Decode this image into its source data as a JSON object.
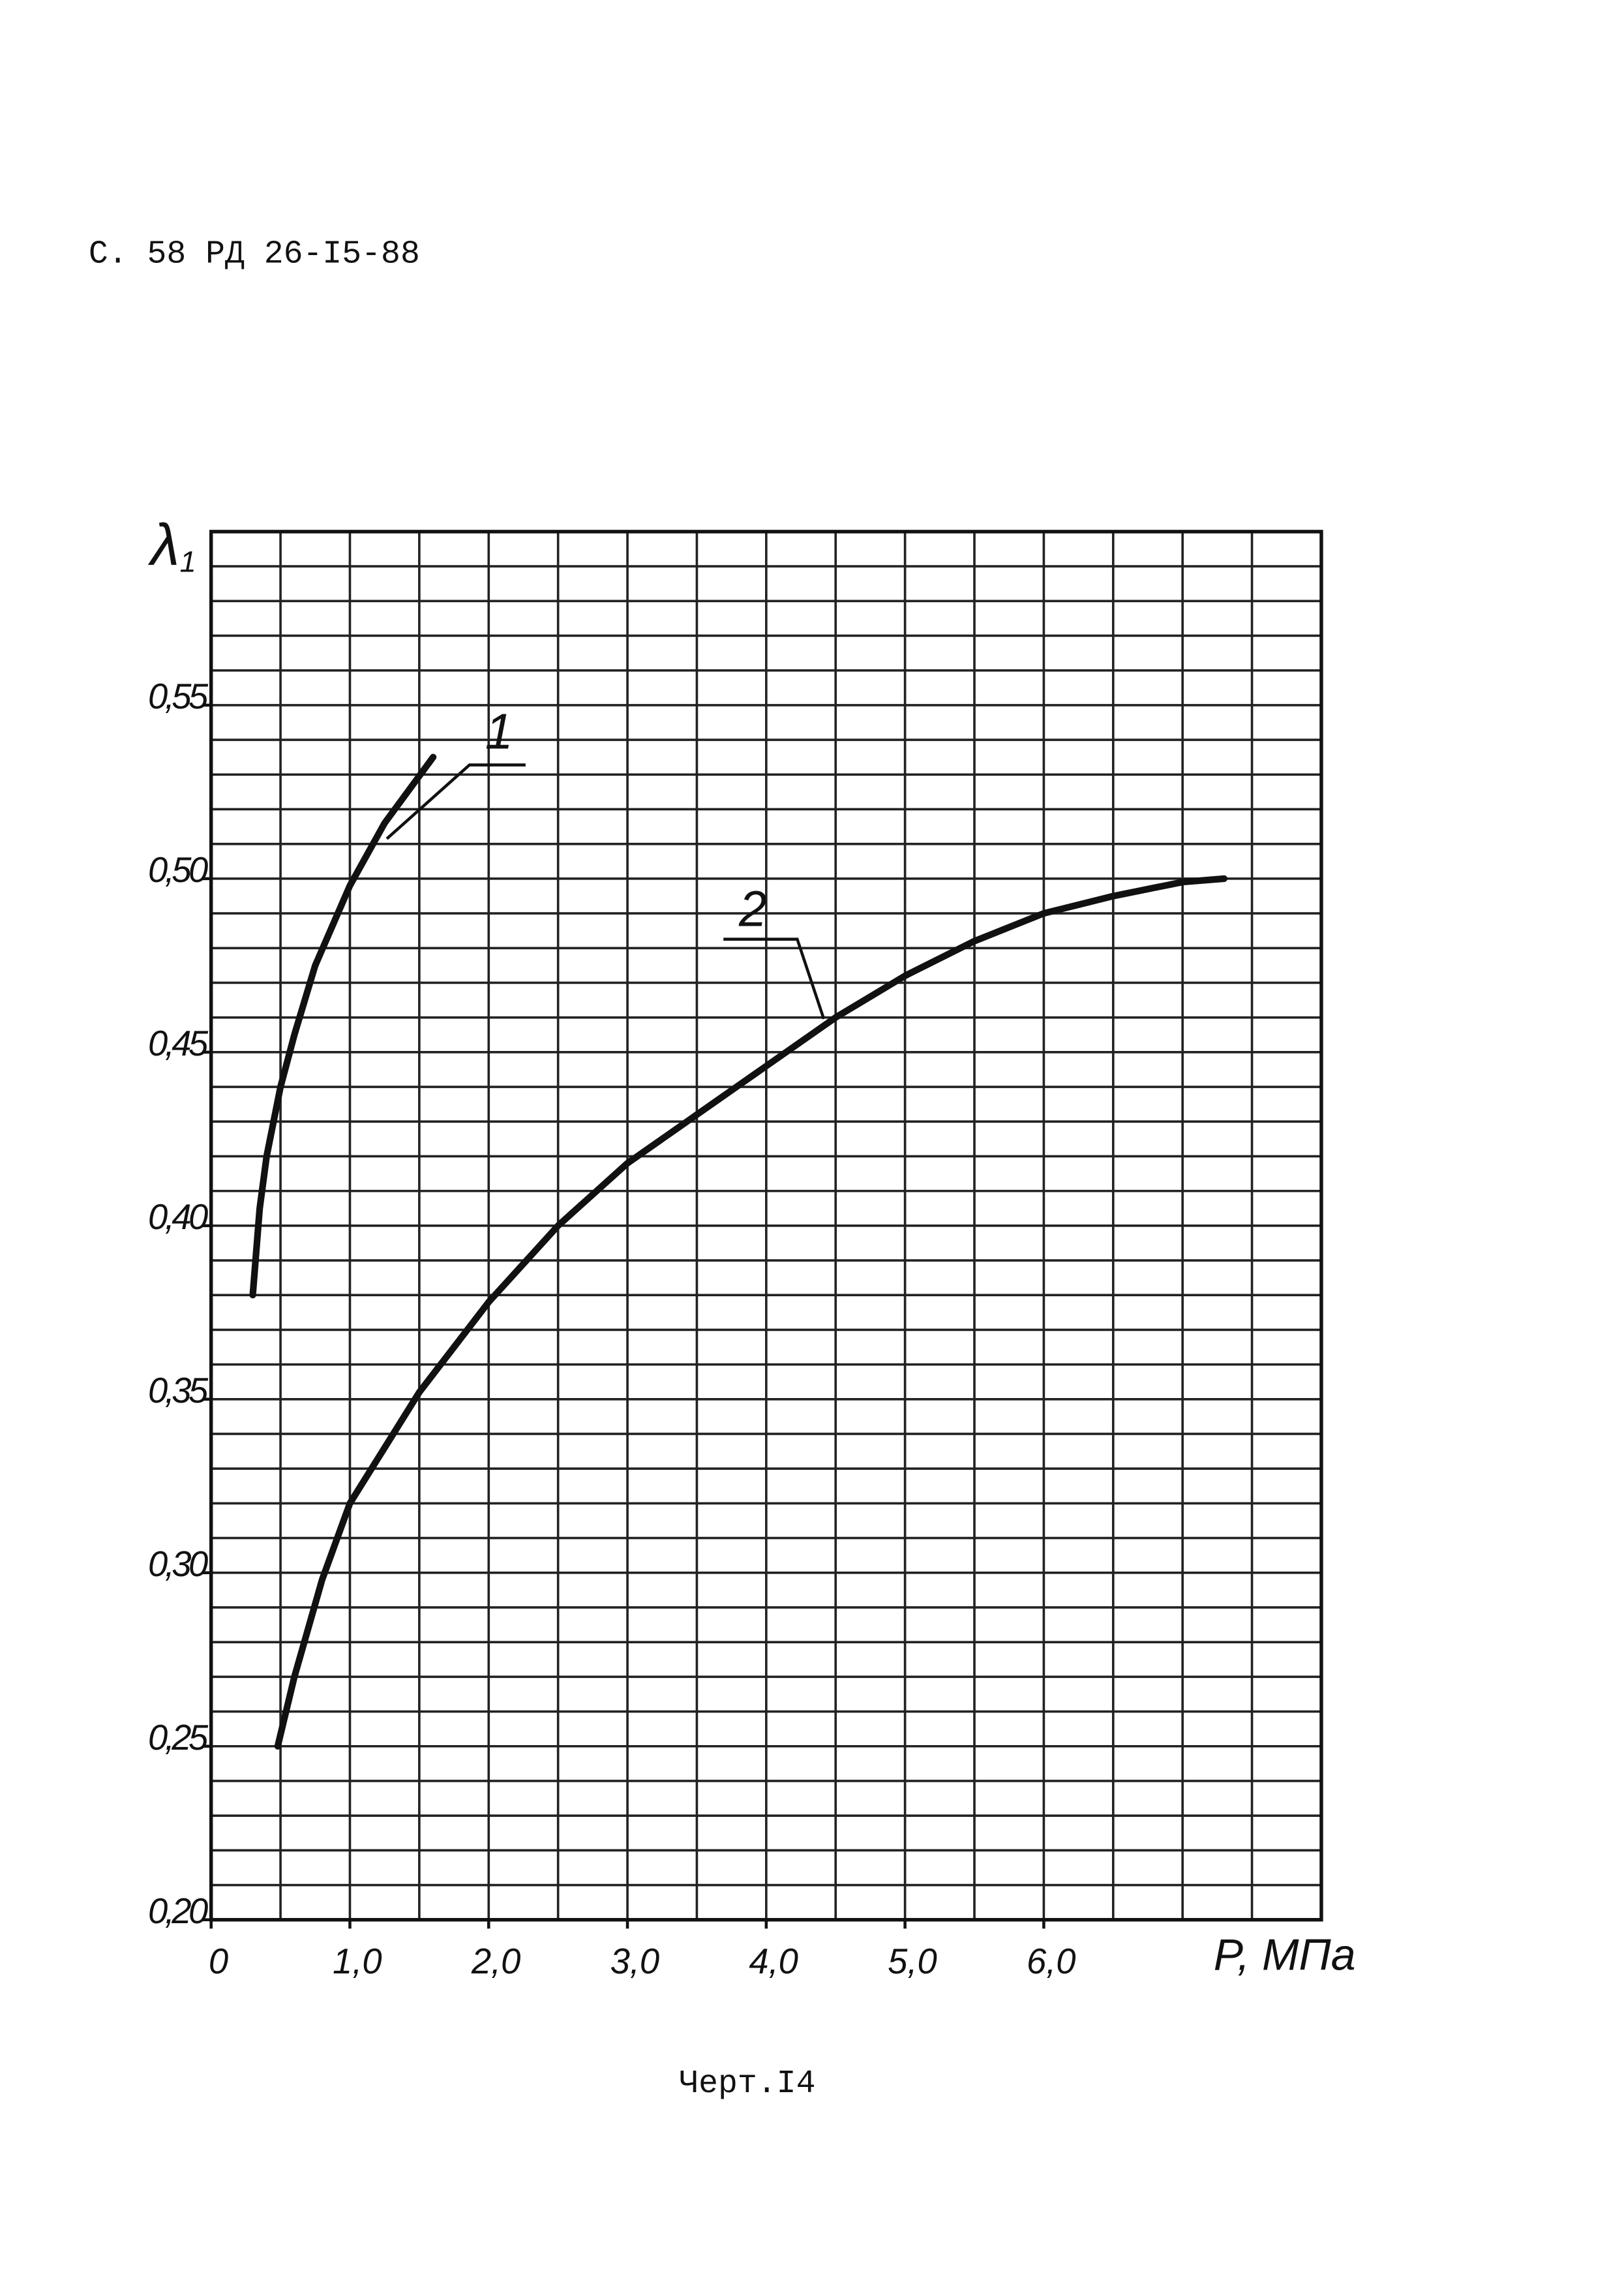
{
  "header": "С. 58  РД 26-I5-88",
  "caption": "Черт.I4",
  "chart_data": {
    "type": "line",
    "y_label": {
      "symbol": "λ",
      "subscript": "1"
    },
    "x_label": "P, МПа",
    "xlim": [
      0,
      8
    ],
    "ylim": [
      0.2,
      0.6
    ],
    "xticks": [
      0,
      {
        "value": 1,
        "label": "1,0"
      },
      {
        "value": 2,
        "label": "2,0"
      },
      {
        "value": 3,
        "label": "3,0"
      },
      {
        "value": 4,
        "label": "4,0"
      },
      {
        "value": 5,
        "label": "5,0"
      },
      {
        "value": 6,
        "label": "6,0"
      }
    ],
    "yticks": [
      {
        "value": 0.2,
        "label": "0,20"
      },
      {
        "value": 0.25,
        "label": "0,25"
      },
      {
        "value": 0.3,
        "label": "0,30"
      },
      {
        "value": 0.35,
        "label": "0,35"
      },
      {
        "value": 0.4,
        "label": "0,40"
      },
      {
        "value": 0.45,
        "label": "0,45"
      },
      {
        "value": 0.5,
        "label": "0,50"
      },
      {
        "value": 0.55,
        "label": "0,55"
      }
    ],
    "xminorticks": [
      0,
      0.5,
      1,
      1.5,
      2,
      2.5,
      3,
      3.5,
      4,
      4.5,
      5,
      5.5,
      6,
      6.5,
      7,
      7.5,
      8
    ],
    "yminorticks": [
      0.2,
      0.21,
      0.22,
      0.23,
      0.24,
      0.25,
      0.26,
      0.27,
      0.28,
      0.29,
      0.3,
      0.31,
      0.32,
      0.33,
      0.34,
      0.35,
      0.36,
      0.37,
      0.38,
      0.39,
      0.4,
      0.41,
      0.42,
      0.43,
      0.44,
      0.45,
      0.46,
      0.47,
      0.48,
      0.49,
      0.5,
      0.51,
      0.52,
      0.53,
      0.54,
      0.55,
      0.56,
      0.57,
      0.58,
      0.59,
      0.6
    ],
    "grid": true,
    "series": [
      {
        "name": "1",
        "color": "#111111",
        "x": [
          0.3,
          0.35,
          0.4,
          0.5,
          0.6,
          0.75,
          1.0,
          1.25,
          1.6
        ],
        "values": [
          0.38,
          0.405,
          0.42,
          0.44,
          0.455,
          0.475,
          0.498,
          0.516,
          0.535
        ]
      },
      {
        "name": "2",
        "color": "#111111",
        "x": [
          0.48,
          0.6,
          0.8,
          1.0,
          1.5,
          2.0,
          2.5,
          3.0,
          3.5,
          4.0,
          4.5,
          5.0,
          5.5,
          6.0,
          6.5,
          7.0,
          7.3
        ],
        "values": [
          0.25,
          0.27,
          0.298,
          0.32,
          0.352,
          0.378,
          0.4,
          0.418,
          0.432,
          0.446,
          0.46,
          0.472,
          0.482,
          0.49,
          0.495,
          0.499,
          0.5
        ]
      }
    ]
  }
}
